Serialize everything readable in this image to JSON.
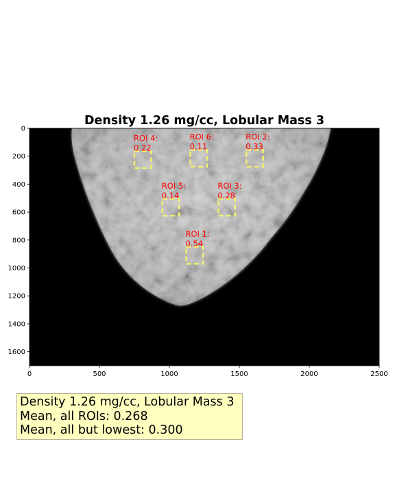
{
  "figure": {
    "title": "Density 1.26 mg/cc, Lobular Mass 3",
    "title_color": "#000000",
    "background_color": "#000000",
    "tissue_color": "#c8c8c8",
    "roi_box_color": "#f0f06e",
    "roi_text_color": "#ff0000",
    "x_ticks": [
      "0",
      "500",
      "1000",
      "1500",
      "2000",
      "2500"
    ],
    "y_ticks": [
      "0",
      "200",
      "400",
      "600",
      "800",
      "1000",
      "1200",
      "1400",
      "1600"
    ],
    "x_range": [
      0,
      2500
    ],
    "y_range": [
      1700,
      0
    ],
    "rois": [
      {
        "name": "ROI 1:",
        "value": "0.54",
        "x": 1180,
        "y": 910
      },
      {
        "name": "ROI 2:",
        "value": "0.33",
        "x": 1610,
        "y": 215
      },
      {
        "name": "ROI 3:",
        "value": "0.28",
        "x": 1410,
        "y": 565
      },
      {
        "name": "ROI 4:",
        "value": "0.22",
        "x": 810,
        "y": 225
      },
      {
        "name": "ROI 5:",
        "value": "0.14",
        "x": 1010,
        "y": 565
      },
      {
        "name": "ROI 6:",
        "value": "0.11",
        "x": 1210,
        "y": 215
      }
    ]
  },
  "summary": {
    "line1": "Density 1.26 mg/cc, Lobular Mass 3",
    "line2": "Mean, all ROIs: 0.268",
    "line3": "Mean, all but lowest: 0.300"
  }
}
